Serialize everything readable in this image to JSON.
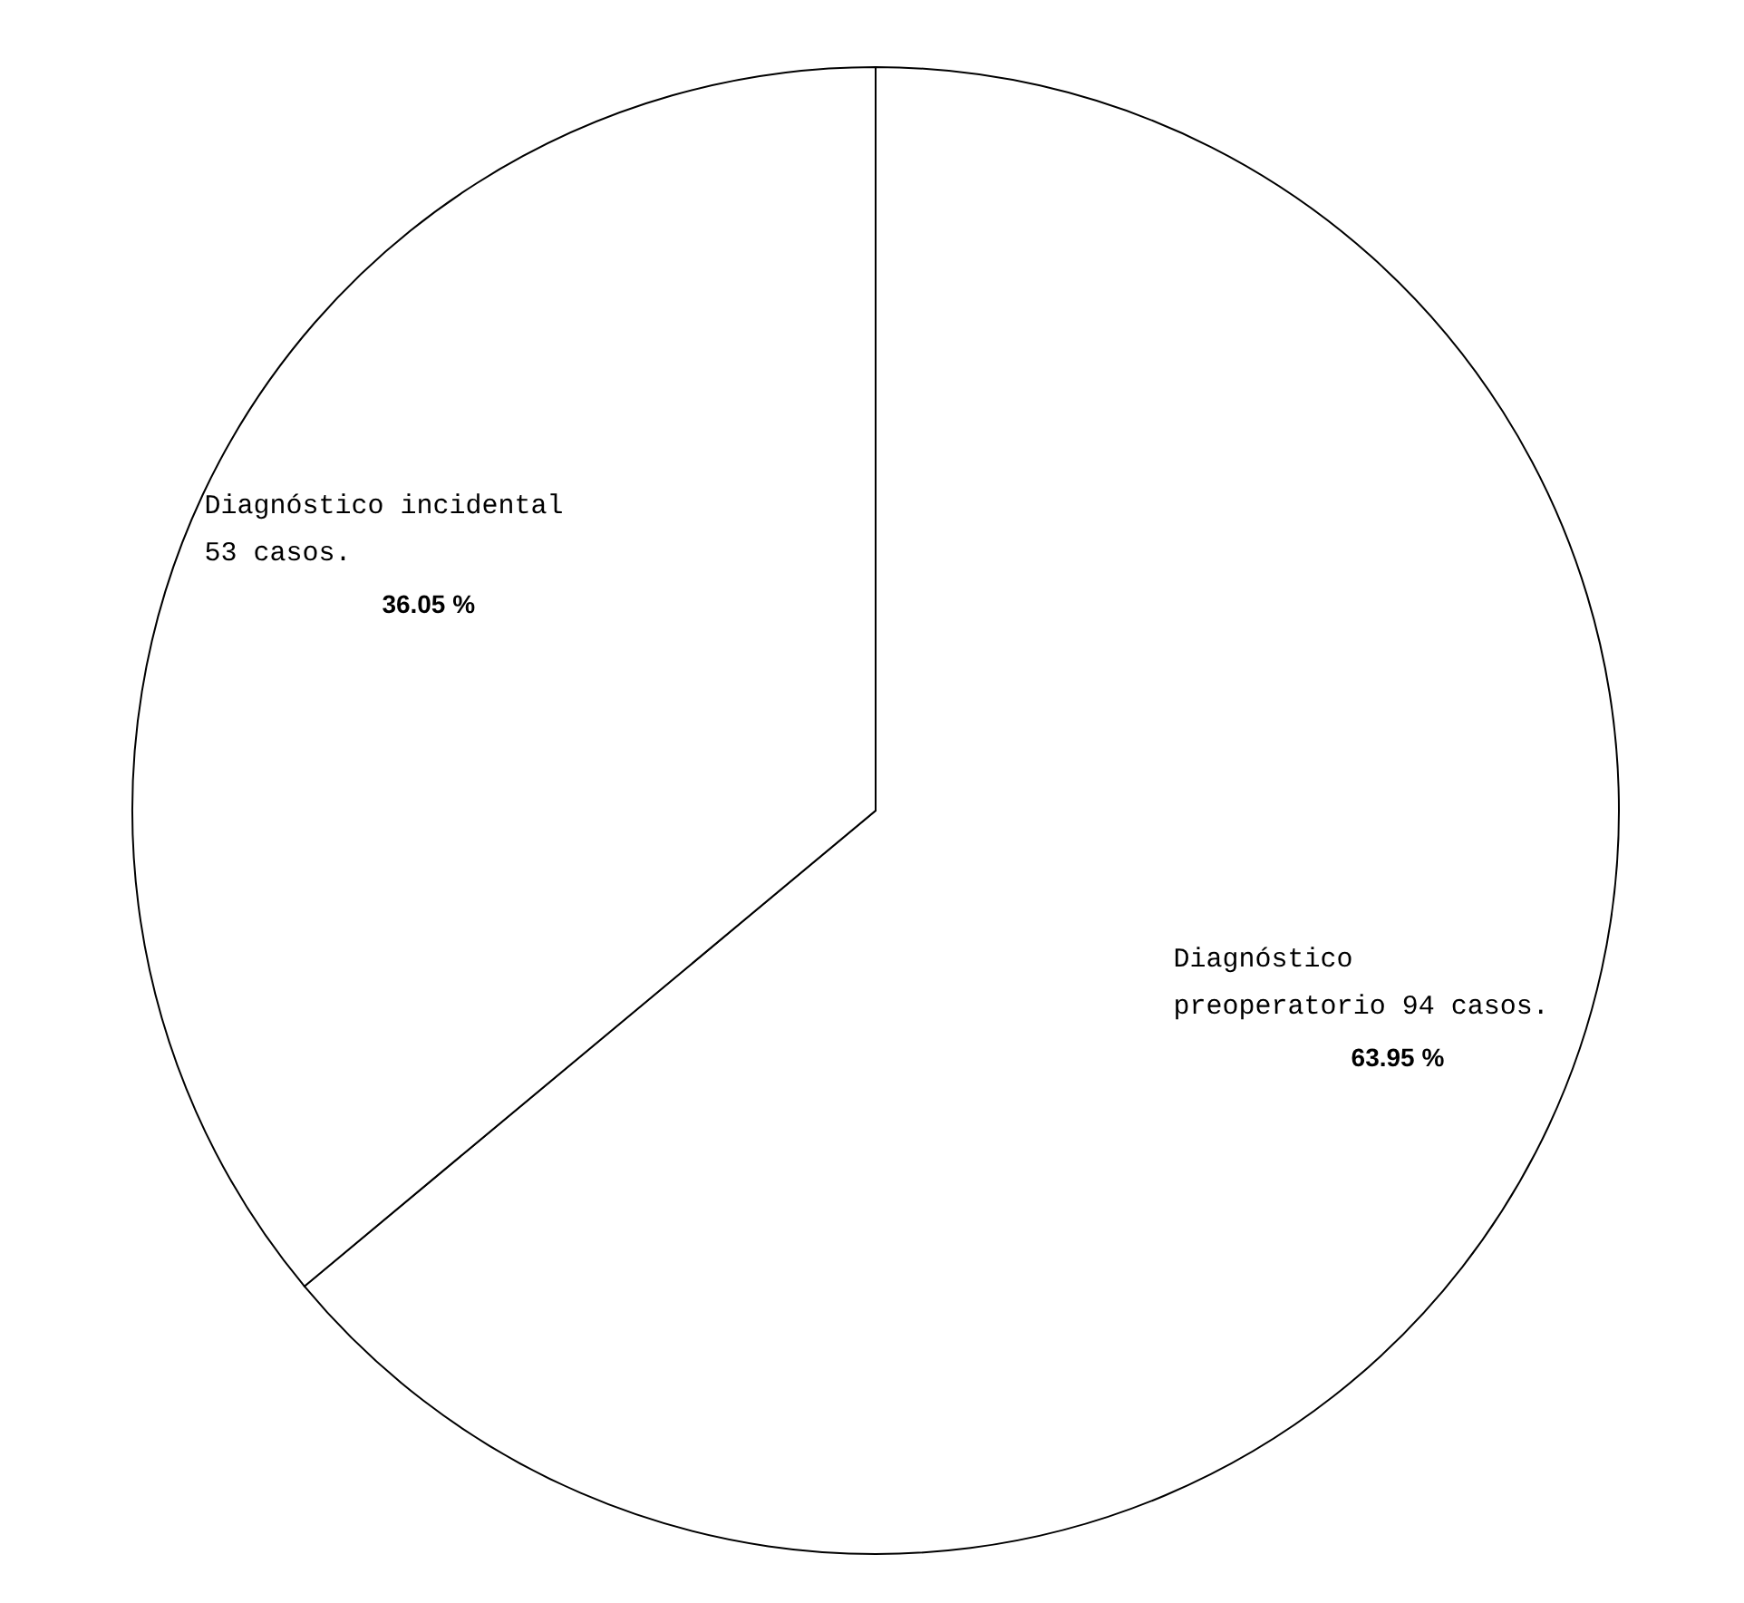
{
  "chart_data": {
    "type": "pie",
    "categories": [
      "Diagnóstico preoperatorio 94 casos.",
      "Diagnóstico incidental 53 casos."
    ],
    "values": [
      63.95,
      36.05
    ],
    "value_labels": [
      "63.95 %",
      "36.05 %"
    ],
    "colors": [
      "#ffffff",
      "#ffffff"
    ]
  }
}
